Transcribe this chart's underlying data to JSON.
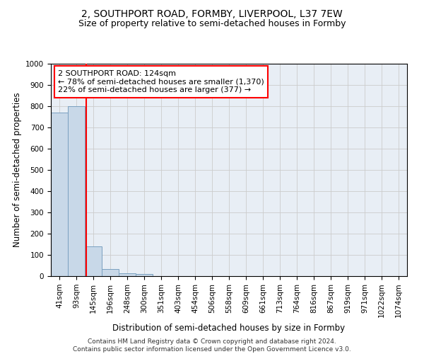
{
  "title_line1": "2, SOUTHPORT ROAD, FORMBY, LIVERPOOL, L37 7EW",
  "title_line2": "Size of property relative to semi-detached houses in Formby",
  "xlabel": "Distribution of semi-detached houses by size in Formby",
  "ylabel": "Number of semi-detached properties",
  "footnote": "Contains HM Land Registry data © Crown copyright and database right 2024.\nContains public sector information licensed under the Open Government Licence v3.0.",
  "bin_labels": [
    "41sqm",
    "93sqm",
    "145sqm",
    "196sqm",
    "248sqm",
    "300sqm",
    "351sqm",
    "403sqm",
    "454sqm",
    "506sqm",
    "558sqm",
    "609sqm",
    "661sqm",
    "713sqm",
    "764sqm",
    "816sqm",
    "867sqm",
    "919sqm",
    "971sqm",
    "1022sqm",
    "1074sqm"
  ],
  "bar_values": [
    770,
    800,
    140,
    35,
    15,
    10,
    0,
    0,
    0,
    0,
    0,
    0,
    0,
    0,
    0,
    0,
    0,
    0,
    0,
    0,
    0
  ],
  "bar_color": "#c8d8e8",
  "bar_edge_color": "#7aa0c0",
  "property_line_x": 1.596,
  "property_line_color": "red",
  "annotation_text": "2 SOUTHPORT ROAD: 124sqm\n← 78% of semi-detached houses are smaller (1,370)\n22% of semi-detached houses are larger (377) →",
  "annotation_box_color": "white",
  "annotation_box_edge_color": "red",
  "ylim": [
    0,
    1000
  ],
  "yticks": [
    0,
    100,
    200,
    300,
    400,
    500,
    600,
    700,
    800,
    900,
    1000
  ],
  "grid_color": "#cccccc",
  "background_color": "white",
  "plot_bg_color": "#e8eef5",
  "title_fontsize": 10,
  "subtitle_fontsize": 9,
  "axis_label_fontsize": 8.5,
  "tick_fontsize": 7.5,
  "annotation_fontsize": 8,
  "footnote_fontsize": 6.5
}
